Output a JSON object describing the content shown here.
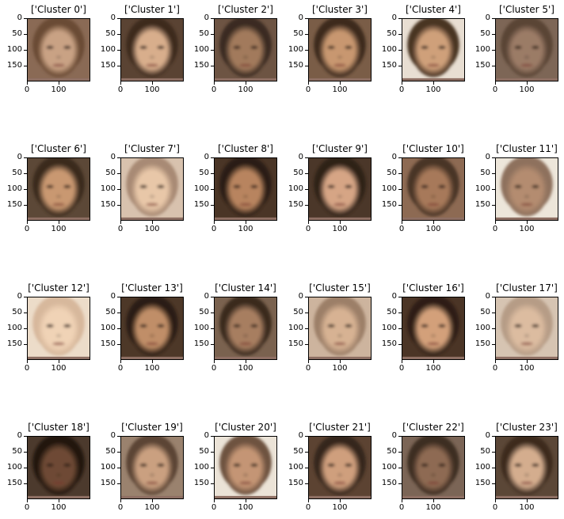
{
  "panels": [
    {
      "title": "['Cluster 0']",
      "skin": "#c9a284",
      "bg": "#8a6a55",
      "hair": "#6b4b34"
    },
    {
      "title": "['Cluster 1']",
      "skin": "#d8ae8c",
      "bg": "#5a4333",
      "hair": "#3d2a1e"
    },
    {
      "title": "['Cluster 2']",
      "skin": "#a27a5c",
      "bg": "#6d5443",
      "hair": "#3a2b21"
    },
    {
      "title": "['Cluster 3']",
      "skin": "#c8976f",
      "bg": "#7a5d47",
      "hair": "#3e2b1f"
    },
    {
      "title": "['Cluster 4']",
      "skin": "#cfa07a",
      "bg": "#e8ded2",
      "hair": "#4a3424"
    },
    {
      "title": "['Cluster 5']",
      "skin": "#9b7b66",
      "bg": "#7d6656",
      "hair": "#5a4536"
    },
    {
      "title": "['Cluster 6']",
      "skin": "#c99871",
      "bg": "#5c4837",
      "hair": "#3a2a1d"
    },
    {
      "title": "['Cluster 7']",
      "skin": "#e8c7a8",
      "bg": "#d8c2ae",
      "hair": "#a88a74"
    },
    {
      "title": "['Cluster 8']",
      "skin": "#b8845e",
      "bg": "#4a3526",
      "hair": "#2c1e15"
    },
    {
      "title": "['Cluster 9']",
      "skin": "#d6a585",
      "bg": "#4b3729",
      "hair": "#2e2017"
    },
    {
      "title": "['Cluster 10']",
      "skin": "#a7795a",
      "bg": "#8d6a53",
      "hair": "#4a3526"
    },
    {
      "title": "['Cluster 11']",
      "skin": "#b48c70",
      "bg": "#ede6da",
      "hair": "#8e715d"
    },
    {
      "title": "['Cluster 12']",
      "skin": "#f0d3b6",
      "bg": "#ecdcc9",
      "hair": "#d7b89c"
    },
    {
      "title": "['Cluster 13']",
      "skin": "#c08e67",
      "bg": "#4d3828",
      "hair": "#2b1c12"
    },
    {
      "title": "['Cluster 14']",
      "skin": "#a77e60",
      "bg": "#7a624f",
      "hair": "#3a2a1f"
    },
    {
      "title": "['Cluster 15']",
      "skin": "#d7b293",
      "bg": "#cdb49e",
      "hair": "#9c7f68"
    },
    {
      "title": "['Cluster 16']",
      "skin": "#d3a07a",
      "bg": "#4b3526",
      "hair": "#2d1f15"
    },
    {
      "title": "['Cluster 17']",
      "skin": "#dcbca0",
      "bg": "#d6c4b2",
      "hair": "#b69c86"
    },
    {
      "title": "['Cluster 18']",
      "skin": "#6e4a34",
      "bg": "#4c3a2d",
      "hair": "#241810"
    },
    {
      "title": "['Cluster 19']",
      "skin": "#caa080",
      "bg": "#9a826e",
      "hair": "#5c4535"
    },
    {
      "title": "['Cluster 20']",
      "skin": "#c49574",
      "bg": "#ebe3d7",
      "hair": "#6e5240"
    },
    {
      "title": "['Cluster 21']",
      "skin": "#cf9f7d",
      "bg": "#5c4332",
      "hair": "#36251a"
    },
    {
      "title": "['Cluster 22']",
      "skin": "#8e6a52",
      "bg": "#7b6556",
      "hair": "#3e2d22"
    },
    {
      "title": "['Cluster 23']",
      "skin": "#d4ad8e",
      "bg": "#5b4737",
      "hair": "#3c2b1f"
    }
  ],
  "axes": {
    "yticks": [
      "0",
      "50",
      "100",
      "150"
    ],
    "xticks": [
      "0",
      "100"
    ]
  }
}
